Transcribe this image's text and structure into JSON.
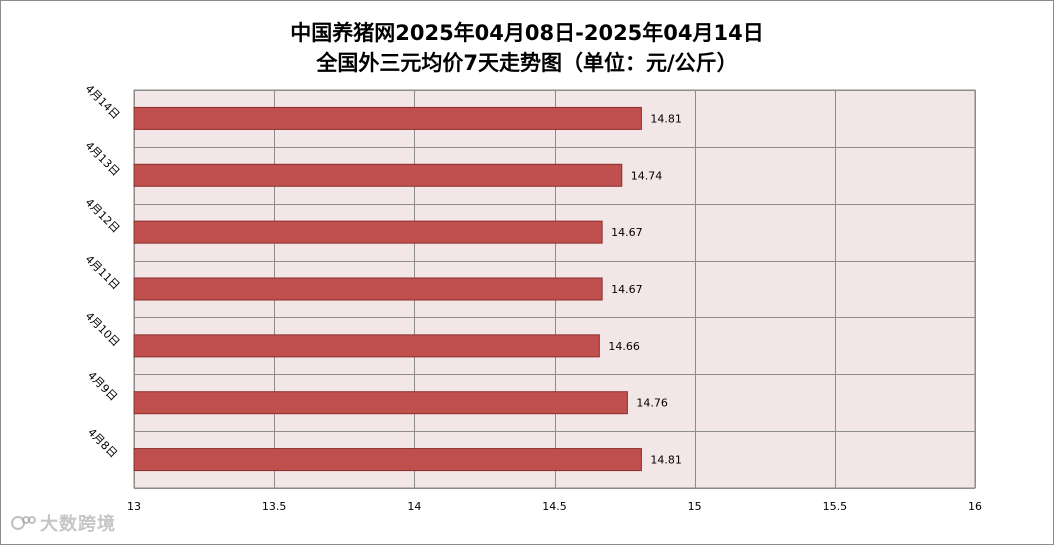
{
  "title_line1": "中国养猪网2025年04月08日-2025年04月14日",
  "title_line2": "全国外三元均价7天走势图（单位：元/公斤）",
  "watermark": "大数跨境",
  "colors": {
    "bar_fill": "#c0504d",
    "bar_stroke": "#8b2f2c",
    "plot_background": "#f2e6e6",
    "grid": "#8c8c8c"
  },
  "chart_data": {
    "type": "bar",
    "orientation": "horizontal",
    "categories": [
      "4月14日",
      "4月13日",
      "4月12日",
      "4月11日",
      "4月10日",
      "4月9日",
      "4月8日"
    ],
    "values": [
      14.81,
      14.74,
      14.67,
      14.67,
      14.66,
      14.76,
      14.81
    ],
    "xlim": [
      13,
      16
    ],
    "xticks": [
      "13",
      "13.5",
      "14",
      "14.5",
      "15",
      "15.5",
      "16"
    ],
    "xtick_values": [
      13,
      13.5,
      14,
      14.5,
      15,
      15.5,
      16
    ],
    "grid": true,
    "legend": "none"
  }
}
